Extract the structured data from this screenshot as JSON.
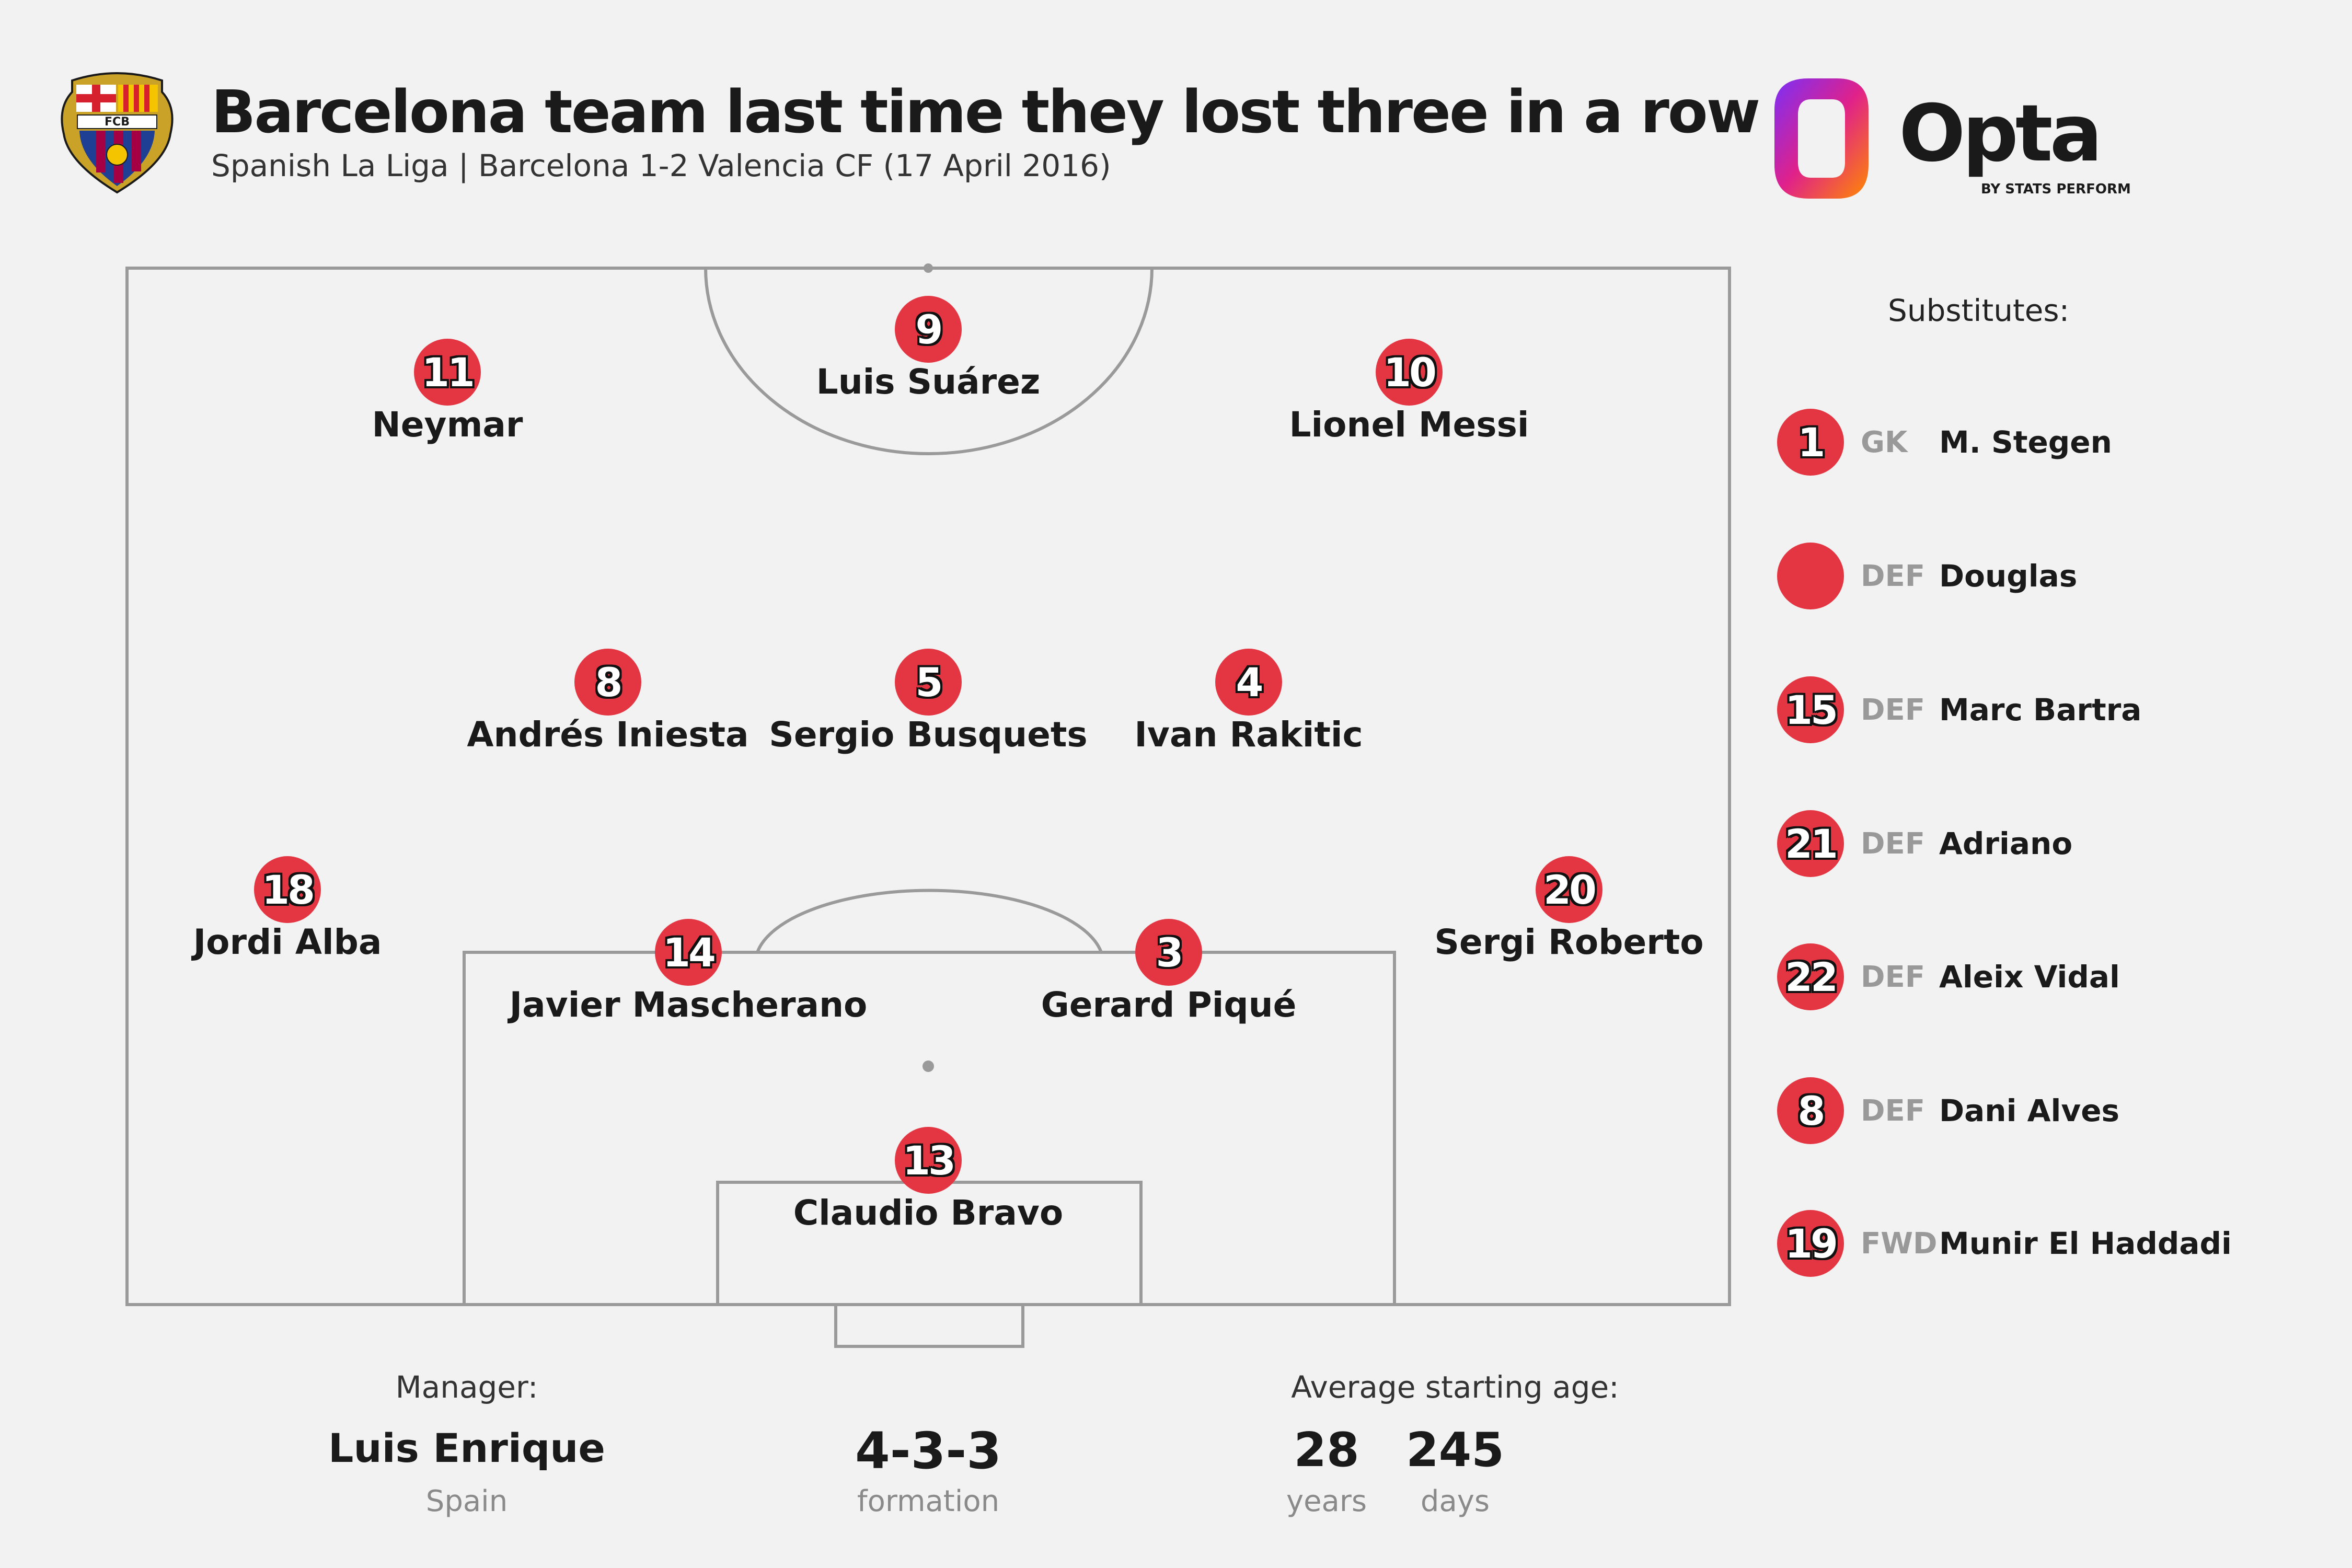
{
  "header": {
    "title": "Barcelona team last time they lost three in a row",
    "subtitle": "Spanish La Liga | Barcelona 1-2 Valencia CF (17 April 2016)",
    "crest_text": "FCB",
    "brand": {
      "name": "Opta",
      "tagline": "BY STATS PERFORM"
    }
  },
  "lineup": [
    {
      "number": "9",
      "name": "Luis Suárez",
      "role": "FWD"
    },
    {
      "number": "11",
      "name": "Neymar",
      "role": "FWD"
    },
    {
      "number": "10",
      "name": "Lionel Messi",
      "role": "FWD"
    },
    {
      "number": "8",
      "name": "Andrés Iniesta",
      "role": "MID"
    },
    {
      "number": "5",
      "name": "Sergio Busquets",
      "role": "MID"
    },
    {
      "number": "4",
      "name": "Ivan Rakitic",
      "role": "MID"
    },
    {
      "number": "18",
      "name": "Jordi Alba",
      "role": "DEF"
    },
    {
      "number": "14",
      "name": "Javier Mascherano",
      "role": "DEF"
    },
    {
      "number": "3",
      "name": "Gerard Piqué",
      "role": "DEF"
    },
    {
      "number": "20",
      "name": "Sergi Roberto",
      "role": "DEF"
    },
    {
      "number": "13",
      "name": "Claudio Bravo",
      "role": "GK"
    }
  ],
  "substitutes": {
    "title": "Substitutes:",
    "players": [
      {
        "number": "1",
        "pos": "GK",
        "name": "M. Stegen"
      },
      {
        "number": "",
        "pos": "DEF",
        "name": "Douglas"
      },
      {
        "number": "15",
        "pos": "DEF",
        "name": "Marc Bartra"
      },
      {
        "number": "21",
        "pos": "DEF",
        "name": "Adriano"
      },
      {
        "number": "22",
        "pos": "DEF",
        "name": "Aleix Vidal"
      },
      {
        "number": "8",
        "pos": "DEF",
        "name": "Dani Alves"
      },
      {
        "number": "19",
        "pos": "FWD",
        "name": "Munir El Haddadi"
      }
    ]
  },
  "footer": {
    "manager_label": "Manager:",
    "manager_name": "Luis Enrique",
    "manager_country": "Spain",
    "formation": "4-3-3",
    "formation_label": "formation",
    "age_label": "Average starting age:",
    "age_years": "28",
    "age_years_label": "years",
    "age_days": "245",
    "age_days_label": "days"
  },
  "colors": {
    "shirt": "#e43642",
    "pitch_lines": "#9a9a9a",
    "background": "#f2f2f2"
  }
}
